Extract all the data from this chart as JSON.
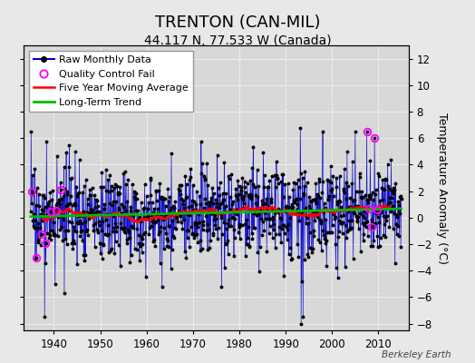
{
  "title": "TRENTON (CAN-MIL)",
  "subtitle": "44.117 N, 77.533 W (Canada)",
  "ylabel": "Temperature Anomaly (°C)",
  "attribution": "Berkeley Earth",
  "ylim": [
    -8.5,
    13.0
  ],
  "xlim": [
    1933.5,
    2016.5
  ],
  "yticks": [
    -8,
    -6,
    -4,
    -2,
    0,
    2,
    4,
    6,
    8,
    10,
    12
  ],
  "xticks": [
    1940,
    1950,
    1960,
    1970,
    1980,
    1990,
    2000,
    2010
  ],
  "raw_color": "#0000cc",
  "dot_color": "#000000",
  "qc_color": "#ff00ff",
  "moving_avg_color": "#ff0000",
  "trend_color": "#00bb00",
  "plot_bg_color": "#d8d8d8",
  "fig_bg_color": "#e8e8e8",
  "legend_items": [
    "Raw Monthly Data",
    "Quality Control Fail",
    "Five Year Moving Average",
    "Long-Term Trend"
  ],
  "title_fontsize": 13,
  "subtitle_fontsize": 10,
  "tick_fontsize": 8.5,
  "ylabel_fontsize": 9,
  "legend_fontsize": 8,
  "attribution_fontsize": 7.5,
  "years_start": 1935,
  "years_end": 2015,
  "noise_std": 1.7,
  "trend_slope": 0.008,
  "trend_intercept": 0.1,
  "ma_window": 60,
  "random_seed": 17
}
